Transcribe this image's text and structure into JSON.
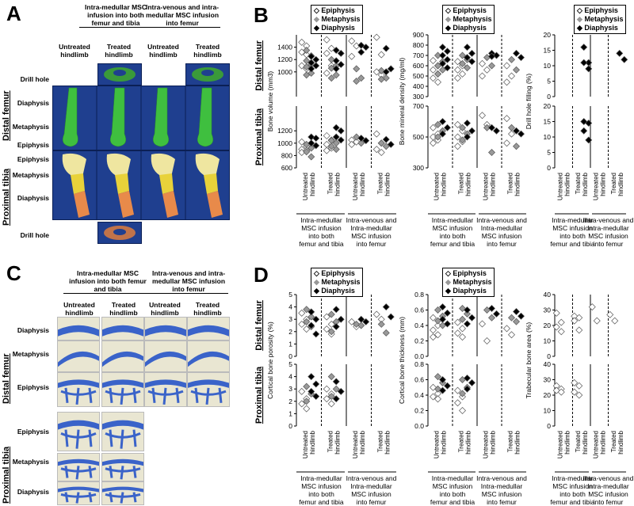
{
  "panels": {
    "A": "A",
    "B": "B",
    "C": "C",
    "D": "D"
  },
  "groups": {
    "g1": "Intra-medullar MSC infusion into both femur and tibia",
    "g2": "Intra-venous and intra-medullar MSC infusion into femur",
    "g1_c": "Intra-medullar MSC infusion into both femur and tibia",
    "g2_c": "Intra-venous and intra-medullar MSC infusion into femur"
  },
  "hindlimbs": {
    "untreated": "Untreated hindlimb",
    "treated": "Treated hindlimb"
  },
  "regions": {
    "drill": "Drill hole",
    "diaphysis": "Diaphysis",
    "metaphysis": "Metaphysis",
    "epiphysis": "Epiphysis",
    "distal_femur": "Distal femur",
    "proximal_tibia": "Proximal tibia"
  },
  "legend": {
    "epiphysis": "Epiphysis",
    "metaphysis": "Metaphysis",
    "diaphysis": "Diaphysis"
  },
  "xcats": [
    "Untreated hindlimb",
    "Treated hindlimb",
    "Untreated hindlimb",
    "Treated hindlimb"
  ],
  "xgroups": [
    "Intra-medullar MSC infusion into both femur and tibia",
    "Intra-venous and Intra-medullar MSC infusion into femur"
  ],
  "colors": {
    "tile": "#1f3f8f",
    "femur_green": "#3fbf3f",
    "tibia_yellow": "#e8d23a",
    "tibia_orange": "#e88a4a",
    "histo_blue": "#3a63c9"
  },
  "chart_data": [
    {
      "type": "scatter",
      "panel": "B",
      "ylabel": "Bone volume (mm3)",
      "rows": [
        {
          "region": "Distal femur",
          "ylim": [
            600,
            1600
          ],
          "ticks": [
            1000,
            1200,
            1400
          ],
          "tick_labels": [
            "1000",
            "1200",
            "1400"
          ],
          "groups": [
            {
              "epi": [
                1480,
                1420,
                1320,
                1280,
                1100,
                1050
              ],
              "met": [
                1350,
                1260,
                1180,
                1120,
                1080,
                980,
                950
              ],
              "dia": [
                1250,
                1200,
                1150,
                1100,
                1050
              ]
            },
            {
              "epi": [
                1520,
                1380,
                1300,
                1100,
                980
              ],
              "met": [
                1200,
                1100,
                1060,
                950,
                900
              ],
              "dia": [
                1350,
                1300,
                1180,
                1120,
                1050
              ]
            },
            {
              "epi": [
                1500,
                1420,
                1250
              ],
              "met": [
                1050,
                900,
                850
              ],
              "dia": [
                1430,
                1400,
                1320
              ]
            },
            {
              "epi": [
                1560,
                1280,
                1000,
                950
              ],
              "met": [
                1020,
                900,
                880
              ],
              "dia": [
                1380,
                1050,
                1000
              ]
            }
          ]
        },
        {
          "region": "Proximal tibia",
          "ylim": [
            600,
            1600
          ],
          "ticks": [
            600,
            800,
            1000,
            1200
          ],
          "tick_labels": [
            "600",
            "800",
            "1000",
            "1200"
          ],
          "groups": [
            {
              "epi": [
                1020,
                950,
                900,
                880,
                850
              ],
              "met": [
                980,
                920,
                860,
                780
              ],
              "dia": [
                1100,
                1080,
                1000,
                960
              ]
            },
            {
              "epi": [
                1120,
                1050,
                980,
                920,
                880
              ],
              "met": [
                1040,
                1000,
                950,
                900
              ],
              "dia": [
                1250,
                1200,
                1100,
                1050
              ]
            },
            {
              "epi": [
                1050,
                1020,
                980
              ],
              "met": [
                1100,
                1000
              ],
              "dia": [
                1080,
                1040
              ]
            },
            {
              "epi": [
                1150,
                1000,
                900,
                850
              ],
              "met": [
                1000,
                950
              ],
              "dia": [
                1060,
                980
              ]
            }
          ]
        }
      ]
    },
    {
      "type": "scatter",
      "panel": "B",
      "ylabel": "Bone mineral density (mg/ml)",
      "rows": [
        {
          "region": "Distal femur",
          "ylim": [
            300,
            900
          ],
          "ticks": [
            300,
            400,
            500,
            600,
            700,
            800,
            900
          ],
          "tick_labels": [
            "300",
            "400",
            "500",
            "600",
            "700",
            "800",
            "900"
          ],
          "groups": [
            {
              "epi": [
                650,
                600,
                560,
                520,
                480,
                440
              ],
              "met": [
                700,
                640,
                600,
                560,
                520
              ],
              "dia": [
                780,
                740,
                700,
                660,
                620,
                580
              ]
            },
            {
              "epi": [
                640,
                600,
                560,
                520,
                480
              ],
              "met": [
                700,
                660,
                620,
                580
              ],
              "dia": [
                780,
                720,
                680,
                640
              ]
            },
            {
              "epi": [
                620,
                560,
                500
              ],
              "met": [
                680,
                600
              ],
              "dia": [
                720,
                700,
                690
              ]
            },
            {
              "epi": [
                600,
                500,
                440
              ],
              "met": [
                660,
                560
              ],
              "dia": [
                720,
                680
              ]
            }
          ]
        },
        {
          "region": "Proximal tibia",
          "ylim": [
            300,
            700
          ],
          "ticks": [
            300,
            500,
            700
          ],
          "tick_labels": [
            "300",
            "500",
            "700"
          ],
          "groups": [
            {
              "epi": [
                560,
                520,
                500,
                480,
                460
              ],
              "met": [
                580,
                540,
                500
              ],
              "dia": [
                600,
                560,
                520
              ]
            },
            {
              "epi": [
                580,
                540,
                500,
                470,
                440
              ],
              "met": [
                560,
                520,
                480
              ],
              "dia": [
                590,
                540,
                500
              ]
            },
            {
              "epi": [
                640,
                580
              ],
              "met": [
                560,
                400
              ],
              "dia": [
                560,
                540
              ]
            },
            {
              "epi": [
                620,
                520,
                460
              ],
              "met": [
                560,
                440
              ],
              "dia": [
                540,
                520
              ]
            }
          ]
        }
      ]
    },
    {
      "type": "scatter",
      "panel": "B",
      "ylabel": "Drill hole filling (%)",
      "rows": [
        {
          "region": "Distal femur",
          "ylim": [
            0,
            20
          ],
          "ticks": [
            0,
            5,
            10,
            15,
            20
          ],
          "tick_labels": [
            "0",
            "5",
            "10",
            "15",
            "20"
          ],
          "groups": [
            {
              "epi": [],
              "met": [],
              "dia": []
            },
            {
              "epi": [],
              "met": [],
              "dia": [
                16,
                11,
                11,
                9
              ]
            },
            {
              "epi": [],
              "met": [],
              "dia": []
            },
            {
              "epi": [],
              "met": [],
              "dia": [
                14,
                12
              ]
            }
          ]
        },
        {
          "region": "Proximal tibia",
          "ylim": [
            0,
            20
          ],
          "ticks": [
            0,
            5,
            10,
            15,
            20
          ],
          "tick_labels": [
            "0",
            "5",
            "10",
            "15",
            "20"
          ],
          "groups": [
            {
              "epi": [],
              "met": [],
              "dia": []
            },
            {
              "epi": [],
              "met": [],
              "dia": [
                15,
                14.5,
                12,
                9
              ]
            },
            {
              "epi": [],
              "met": [],
              "dia": []
            },
            {
              "epi": [],
              "met": [],
              "dia": []
            }
          ]
        }
      ]
    },
    {
      "type": "scatter",
      "panel": "D",
      "ylabel": "Cortical bone porosity (%)",
      "rows": [
        {
          "region": "Distal femur",
          "ylim": [
            0,
            5
          ],
          "ticks": [
            0,
            1,
            2,
            3,
            4,
            5
          ],
          "tick_labels": [
            "0",
            "1",
            "2",
            "3",
            "4",
            "5"
          ],
          "groups": [
            {
              "epi": [
                3.5,
                3.0,
                2.6,
                2.2
              ],
              "met": [
                3.8,
                3.2,
                2.8,
                2.4
              ],
              "dia": [
                3.6,
                3.0,
                2.5,
                1.8
              ]
            },
            {
              "epi": [
                3.2,
                2.6,
                2.2,
                1.8
              ],
              "met": [
                3.4,
                2.8,
                2.0
              ],
              "dia": [
                3.8,
                3.0,
                2.4
              ]
            },
            {
              "epi": [
                2.8,
                2.4
              ],
              "met": [
                2.6,
                2.5
              ],
              "dia": [
                3.0,
                2.8
              ]
            },
            {
              "epi": [
                3.4,
                3.0
              ],
              "met": [
                2.6,
                1.9
              ],
              "dia": [
                4.0,
                3.2
              ]
            }
          ]
        },
        {
          "region": "Proximal tibia",
          "ylim": [
            0,
            5
          ],
          "ticks": [
            0,
            1,
            2,
            3,
            4,
            5
          ],
          "tick_labels": [
            "0",
            "1",
            "2",
            "3",
            "4",
            "5"
          ],
          "groups": [
            {
              "epi": [
                2.8,
                2.2,
                1.8,
                1.4
              ],
              "met": [
                3.2,
                2.6,
                2.0
              ],
              "dia": [
                4.0,
                3.4,
                2.8,
                2.4
              ]
            },
            {
              "epi": [
                3.0,
                2.6,
                2.2,
                1.8
              ],
              "met": [
                4.0,
                3.0,
                2.4
              ],
              "dia": [
                3.6,
                2.8,
                2.2
              ]
            },
            {
              "epi": [],
              "met": [],
              "dia": []
            },
            {
              "epi": [],
              "met": [],
              "dia": []
            }
          ]
        }
      ]
    },
    {
      "type": "scatter",
      "panel": "D",
      "ylabel": "Cortical bone thickness (mm)",
      "rows": [
        {
          "region": "Distal femur",
          "ylim": [
            0,
            0.8
          ],
          "ticks": [
            0,
            0.2,
            0.4,
            0.6,
            0.8
          ],
          "tick_labels": [
            "0.0",
            "0.2",
            "0.4",
            "0.6",
            "0.8"
          ],
          "groups": [
            {
              "epi": [
                0.5,
                0.4,
                0.34,
                0.28,
                0.25
              ],
              "met": [
                0.6,
                0.52,
                0.46,
                0.4
              ],
              "dia": [
                0.64,
                0.56,
                0.48,
                0.42
              ]
            },
            {
              "epi": [
                0.44,
                0.36,
                0.3,
                0.25
              ],
              "met": [
                0.62,
                0.55,
                0.48
              ],
              "dia": [
                0.6,
                0.5,
                0.42
              ]
            },
            {
              "epi": [
                0.42,
                0.2
              ],
              "met": [
                0.6,
                0.5
              ],
              "dia": [
                0.62,
                0.55
              ]
            },
            {
              "epi": [
                0.36,
                0.28
              ],
              "met": [
                0.5,
                0.45
              ],
              "dia": [
                0.58,
                0.52
              ]
            }
          ]
        },
        {
          "region": "Proximal tibia",
          "ylim": [
            0,
            0.8
          ],
          "ticks": [
            0,
            0.2,
            0.4,
            0.6,
            0.8
          ],
          "tick_labels": [
            "0.0",
            "0.2",
            "0.4",
            "0.6",
            "0.8"
          ],
          "groups": [
            {
              "epi": [
                0.5,
                0.42,
                0.38,
                0.35
              ],
              "met": [
                0.64,
                0.56,
                0.48
              ],
              "dia": [
                0.6,
                0.52,
                0.46
              ]
            },
            {
              "epi": [
                0.46,
                0.38,
                0.3,
                0.2
              ],
              "met": [
                0.6,
                0.5,
                0.42
              ],
              "dia": [
                0.62,
                0.56,
                0.48
              ]
            },
            {
              "epi": [],
              "met": [],
              "dia": []
            },
            {
              "epi": [],
              "met": [],
              "dia": []
            }
          ]
        }
      ]
    },
    {
      "type": "scatter",
      "panel": "D",
      "ylabel": "Trabecular bone area (%)",
      "rows": [
        {
          "region": "Distal femur",
          "ylim": [
            0,
            40
          ],
          "ticks": [
            0,
            10,
            20,
            30,
            40
          ],
          "tick_labels": [
            "0",
            "10",
            "20",
            "30",
            "40"
          ],
          "groups": [
            {
              "epi": [
                28,
                22,
                19,
                16
              ],
              "met": [],
              "dia": []
            },
            {
              "epi": [
                26,
                25,
                23,
                17
              ],
              "met": [],
              "dia": []
            },
            {
              "epi": [
                32,
                23
              ],
              "met": [],
              "dia": []
            },
            {
              "epi": [
                27,
                23
              ],
              "met": [],
              "dia": []
            }
          ]
        },
        {
          "region": "Proximal tibia",
          "ylim": [
            0,
            40
          ],
          "ticks": [
            0,
            10,
            20,
            30,
            40
          ],
          "tick_labels": [
            "0",
            "10",
            "20",
            "30",
            "40"
          ],
          "groups": [
            {
              "epi": [
                26,
                24,
                23,
                22
              ],
              "met": [],
              "dia": []
            },
            {
              "epi": [
                28,
                26,
                22,
                20
              ],
              "met": [],
              "dia": []
            },
            {
              "epi": [],
              "met": [],
              "dia": []
            },
            {
              "epi": [],
              "met": [],
              "dia": []
            }
          ]
        }
      ]
    }
  ]
}
